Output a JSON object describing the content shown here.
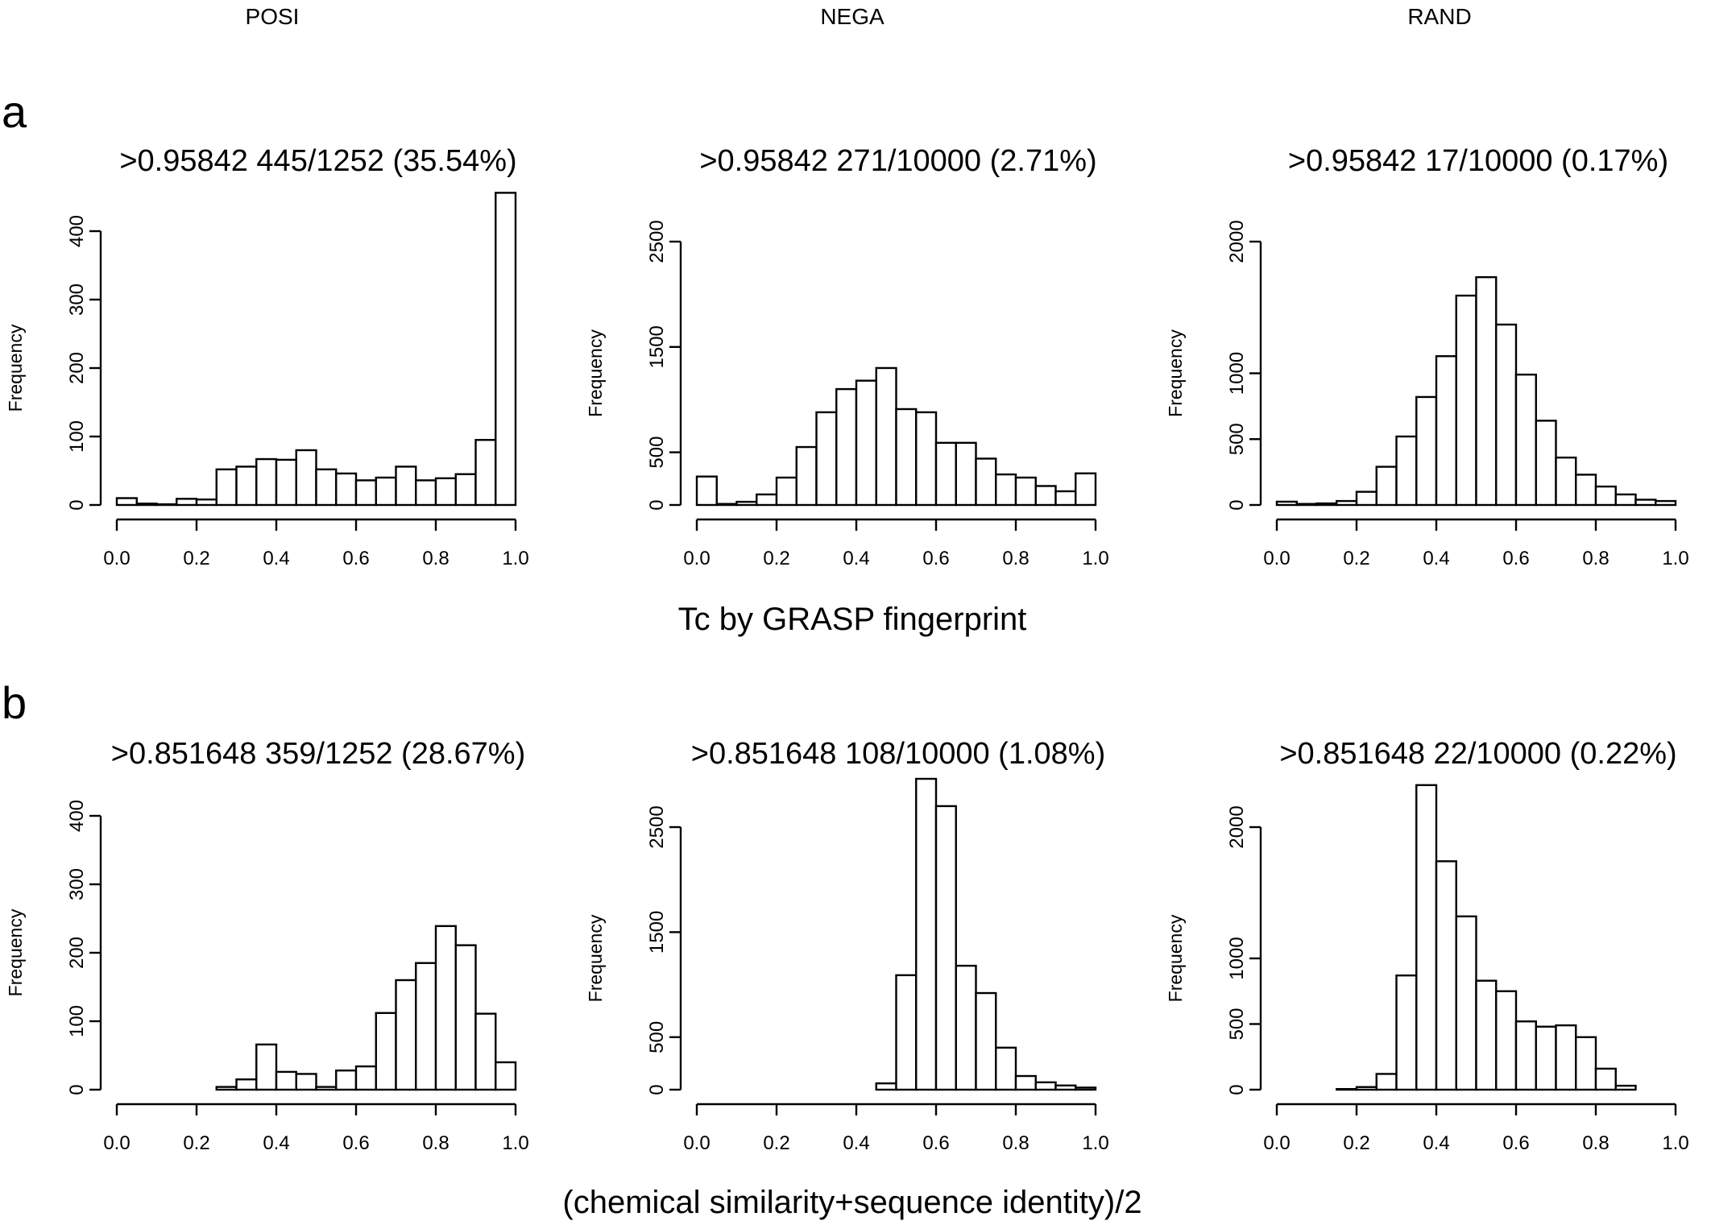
{
  "column_labels": [
    "POSI",
    "NEGA",
    "RAND"
  ],
  "panel_letters": [
    "a",
    "b"
  ],
  "row_xlabels": [
    "Tc by GRASP fingerprint",
    "(chemical similarity+sequence identity)/2"
  ],
  "chart_data": [
    {
      "type": "bar",
      "row": 0,
      "col": 0,
      "title": ">0.95842   445/1252 (35.54%)",
      "ylabel": "Frequency",
      "bin_width": 0.05,
      "xlim": [
        0,
        1
      ],
      "xticks": [
        0.0,
        0.2,
        0.4,
        0.6,
        0.8,
        1.0
      ],
      "ylim": [
        0,
        400
      ],
      "yticks": [
        0,
        100,
        200,
        300,
        400
      ],
      "values": [
        10,
        2,
        1,
        9,
        8,
        52,
        56,
        67,
        66,
        80,
        52,
        46,
        36,
        40,
        56,
        36,
        39,
        45,
        95,
        456
      ]
    },
    {
      "type": "bar",
      "row": 0,
      "col": 1,
      "title": ">0.95842   271/10000 (2.71%)",
      "ylabel": "Frequency",
      "bin_width": 0.05,
      "xlim": [
        0,
        1
      ],
      "xticks": [
        0.0,
        0.2,
        0.4,
        0.6,
        0.8,
        1.0
      ],
      "ylim": [
        0,
        2500
      ],
      "yticks": [
        0,
        500,
        1500,
        2500
      ],
      "values": [
        270,
        10,
        30,
        100,
        260,
        550,
        880,
        1100,
        1180,
        1300,
        910,
        880,
        590,
        590,
        440,
        290,
        260,
        180,
        130,
        300
      ]
    },
    {
      "type": "bar",
      "row": 0,
      "col": 2,
      "title": ">0.95842   17/10000 (0.17%)",
      "ylabel": "Frequency",
      "bin_width": 0.05,
      "xlim": [
        0,
        1
      ],
      "xticks": [
        0.0,
        0.2,
        0.4,
        0.6,
        0.8,
        1.0
      ],
      "ylim": [
        0,
        2000
      ],
      "yticks": [
        0,
        500,
        1000,
        2000
      ],
      "values": [
        25,
        8,
        12,
        30,
        100,
        290,
        520,
        820,
        1130,
        1590,
        1730,
        1370,
        990,
        640,
        360,
        230,
        140,
        80,
        40,
        30
      ]
    },
    {
      "type": "bar",
      "row": 1,
      "col": 0,
      "title": ">0.851648   359/1252 (28.67%)",
      "ylabel": "Frequency",
      "bin_width": 0.05,
      "xlim": [
        0,
        1
      ],
      "xticks": [
        0.0,
        0.2,
        0.4,
        0.6,
        0.8,
        1.0
      ],
      "ylim": [
        0,
        400
      ],
      "yticks": [
        0,
        100,
        200,
        300,
        400
      ],
      "values": [
        0,
        0,
        0,
        0,
        0,
        4,
        15,
        66,
        26,
        23,
        4,
        28,
        34,
        112,
        160,
        185,
        239,
        211,
        111,
        40
      ]
    },
    {
      "type": "bar",
      "row": 1,
      "col": 1,
      "title": ">0.851648   108/10000 (1.08%)",
      "ylabel": "Frequency",
      "bin_width": 0.05,
      "xlim": [
        0,
        1
      ],
      "xticks": [
        0.0,
        0.2,
        0.4,
        0.6,
        0.8,
        1.0
      ],
      "ylim": [
        0,
        2500
      ],
      "yticks": [
        0,
        500,
        1500,
        2500
      ],
      "values": [
        0,
        0,
        0,
        0,
        0,
        0,
        0,
        0,
        0,
        60,
        1090,
        2960,
        2700,
        1180,
        920,
        400,
        130,
        70,
        40,
        20
      ]
    },
    {
      "type": "bar",
      "row": 1,
      "col": 2,
      "title": ">0.851648   22/10000 (0.22%)",
      "ylabel": "Frequency",
      "bin_width": 0.05,
      "xlim": [
        0,
        1
      ],
      "xticks": [
        0.0,
        0.2,
        0.4,
        0.6,
        0.8,
        1.0
      ],
      "ylim": [
        0,
        2000
      ],
      "yticks": [
        0,
        500,
        1000,
        2000
      ],
      "values": [
        0,
        0,
        0,
        5,
        20,
        120,
        870,
        2320,
        1740,
        1320,
        830,
        750,
        520,
        480,
        490,
        400,
        160,
        30,
        0,
        0
      ]
    }
  ]
}
